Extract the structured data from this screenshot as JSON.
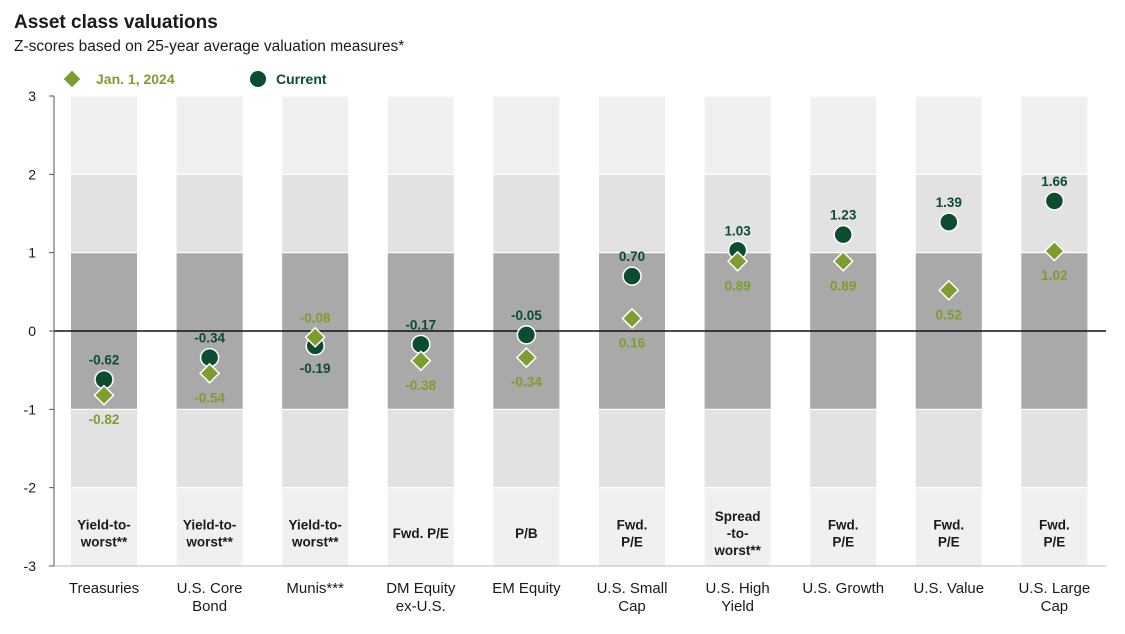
{
  "chart_data": {
    "type": "scatter",
    "title": "Asset class valuations",
    "subtitle": "Z-scores based on 25-year average valuation measures*",
    "ylim": [
      -3,
      3
    ],
    "yticks": [
      "3",
      "2",
      "1",
      "0",
      "-1",
      "-2",
      "-3"
    ],
    "categories": [
      {
        "name": [
          "Treasuries"
        ],
        "measure": [
          "Yield-to-",
          "worst**"
        ]
      },
      {
        "name": [
          "U.S. Core",
          "Bond"
        ],
        "measure": [
          "Yield-to-",
          "worst**"
        ]
      },
      {
        "name": [
          "Munis***"
        ],
        "measure": [
          "Yield-to-",
          "worst**"
        ]
      },
      {
        "name": [
          "DM Equity",
          "ex-U.S."
        ],
        "measure": [
          "Fwd. P/E"
        ]
      },
      {
        "name": [
          "EM Equity"
        ],
        "measure": [
          "P/B"
        ]
      },
      {
        "name": [
          "U.S. Small",
          "Cap"
        ],
        "measure": [
          "Fwd.",
          "P/E"
        ]
      },
      {
        "name": [
          "U.S. High",
          "Yield"
        ],
        "measure": [
          "Spread",
          "-to-",
          "worst**"
        ]
      },
      {
        "name": [
          "U.S. Growth"
        ],
        "measure": [
          "Fwd.",
          "P/E"
        ]
      },
      {
        "name": [
          "U.S. Value"
        ],
        "measure": [
          "Fwd.",
          "P/E"
        ]
      },
      {
        "name": [
          "U.S. Large",
          "Cap"
        ],
        "measure": [
          "Fwd.",
          "P/E"
        ]
      }
    ],
    "series": [
      {
        "name": "Jan. 1, 2024",
        "marker": "diamond",
        "color": "#7d9e2f",
        "values": [
          -0.82,
          -0.54,
          -0.08,
          -0.38,
          -0.34,
          0.16,
          0.89,
          0.89,
          0.52,
          1.02
        ],
        "labels": [
          "-0.82",
          "-0.54",
          "-0.08",
          "-0.38",
          "-0.34",
          "0.16",
          "0.89",
          "0.89",
          "0.52",
          "1.02"
        ]
      },
      {
        "name": "Current",
        "marker": "circle",
        "color": "#0b4d2e",
        "values": [
          -0.62,
          -0.34,
          -0.19,
          -0.17,
          -0.05,
          0.7,
          1.03,
          1.23,
          1.39,
          1.66
        ],
        "labels": [
          "-0.62",
          "-0.34",
          "-0.19",
          "-0.17",
          "-0.05",
          "0.70",
          "1.03",
          "1.23",
          "1.39",
          "1.66"
        ]
      }
    ],
    "bands": [
      {
        "range": [
          -1,
          1
        ],
        "color": "#a9a9a9"
      },
      {
        "range": [
          -2,
          2
        ],
        "color": "#e2e2e2"
      }
    ],
    "legend_position": "top-left",
    "grid": true
  }
}
